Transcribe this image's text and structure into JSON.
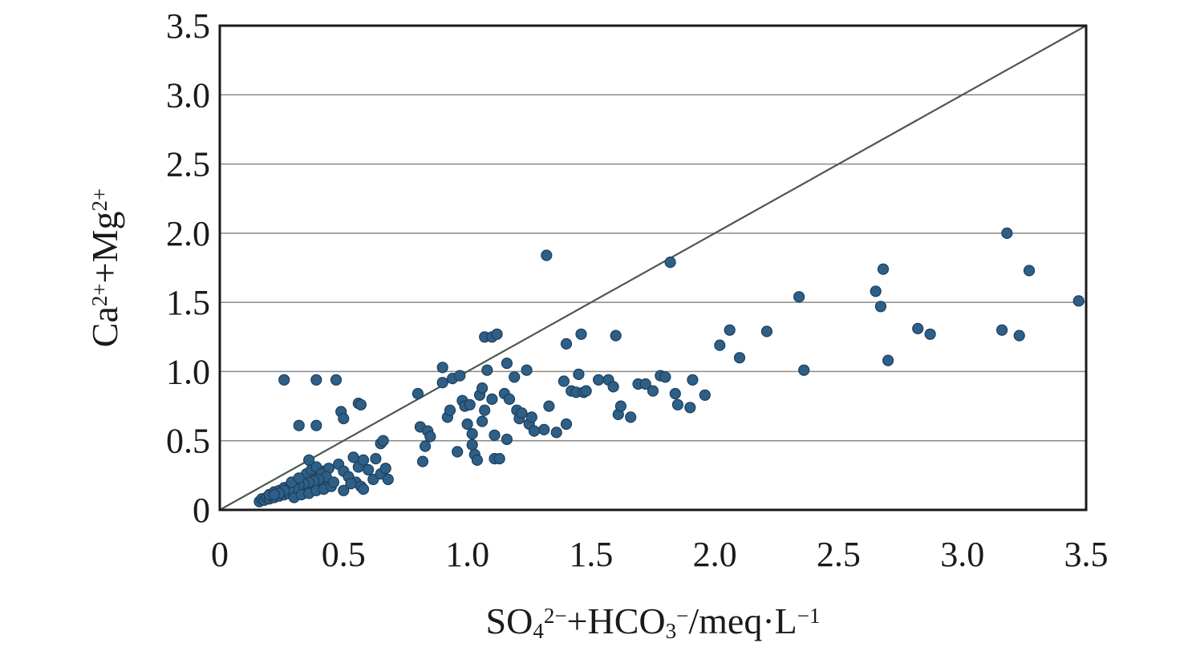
{
  "chart_data": {
    "type": "scatter",
    "title": "",
    "xlabel": {
      "parts": [
        {
          "text": "SO",
          "style": "normal"
        },
        {
          "text": "4",
          "style": "sub"
        },
        {
          "text": "2−",
          "style": "sup"
        },
        {
          "text": "+HCO",
          "style": "normal"
        },
        {
          "text": "3",
          "style": "sub"
        },
        {
          "text": "−",
          "style": "sup"
        },
        {
          "text": "/meq·L",
          "style": "normal"
        },
        {
          "text": "−1",
          "style": "sup"
        }
      ]
    },
    "ylabel": {
      "parts": [
        {
          "text": "Ca",
          "style": "normal"
        },
        {
          "text": "2+",
          "style": "sup"
        },
        {
          "text": "+Mg",
          "style": "normal"
        },
        {
          "text": "2+",
          "style": "sup"
        }
      ]
    },
    "xlim": [
      0,
      3.5
    ],
    "ylim": [
      0,
      3.5
    ],
    "x_ticks": [
      "0",
      "0.5",
      "1.0",
      "1.5",
      "2.0",
      "2.5",
      "3.0",
      "3.5"
    ],
    "y_ticks": [
      "0",
      "0.5",
      "1.0",
      "1.5",
      "2.0",
      "2.5",
      "3.0",
      "3.5"
    ],
    "grid": "horizontal",
    "reference_line": {
      "from": [
        0,
        0
      ],
      "to": [
        3.5,
        3.5
      ],
      "color": "#4a5a4a"
    },
    "marker_color": "#2e5f86",
    "points": [
      [
        0.16,
        0.06
      ],
      [
        0.17,
        0.08
      ],
      [
        0.18,
        0.07
      ],
      [
        0.19,
        0.09
      ],
      [
        0.2,
        0.08
      ],
      [
        0.21,
        0.1
      ],
      [
        0.22,
        0.09
      ],
      [
        0.23,
        0.11
      ],
      [
        0.24,
        0.1
      ],
      [
        0.25,
        0.12
      ],
      [
        0.26,
        0.11
      ],
      [
        0.27,
        0.13
      ],
      [
        0.28,
        0.12
      ],
      [
        0.29,
        0.14
      ],
      [
        0.3,
        0.13
      ],
      [
        0.31,
        0.15
      ],
      [
        0.32,
        0.14
      ],
      [
        0.33,
        0.16
      ],
      [
        0.34,
        0.15
      ],
      [
        0.35,
        0.17
      ],
      [
        0.36,
        0.16
      ],
      [
        0.37,
        0.18
      ],
      [
        0.38,
        0.17
      ],
      [
        0.39,
        0.19
      ],
      [
        0.4,
        0.18
      ],
      [
        0.41,
        0.2
      ],
      [
        0.42,
        0.19
      ],
      [
        0.43,
        0.21
      ],
      [
        0.44,
        0.2
      ],
      [
        0.2,
        0.11
      ],
      [
        0.22,
        0.13
      ],
      [
        0.24,
        0.14
      ],
      [
        0.26,
        0.16
      ],
      [
        0.28,
        0.17
      ],
      [
        0.3,
        0.19
      ],
      [
        0.32,
        0.2
      ],
      [
        0.34,
        0.22
      ],
      [
        0.36,
        0.24
      ],
      [
        0.38,
        0.25
      ],
      [
        0.4,
        0.27
      ],
      [
        0.42,
        0.28
      ],
      [
        0.44,
        0.3
      ],
      [
        0.3,
        0.09
      ],
      [
        0.33,
        0.11
      ],
      [
        0.36,
        0.12
      ],
      [
        0.39,
        0.14
      ],
      [
        0.42,
        0.15
      ],
      [
        0.45,
        0.17
      ],
      [
        0.35,
        0.26
      ],
      [
        0.37,
        0.29
      ],
      [
        0.39,
        0.31
      ],
      [
        0.41,
        0.26
      ],
      [
        0.43,
        0.24
      ],
      [
        0.4,
        0.22
      ],
      [
        0.38,
        0.21
      ],
      [
        0.36,
        0.2
      ],
      [
        0.34,
        0.19
      ],
      [
        0.32,
        0.18
      ],
      [
        0.3,
        0.16
      ],
      [
        0.28,
        0.15
      ],
      [
        0.26,
        0.14
      ],
      [
        0.24,
        0.12
      ],
      [
        0.22,
        0.11
      ],
      [
        0.36,
        0.36
      ],
      [
        0.29,
        0.2
      ],
      [
        0.32,
        0.23
      ],
      [
        0.26,
        0.94
      ],
      [
        0.32,
        0.61
      ],
      [
        0.39,
        0.94
      ],
      [
        0.39,
        0.61
      ],
      [
        0.47,
        0.94
      ],
      [
        0.49,
        0.71
      ],
      [
        0.5,
        0.66
      ],
      [
        0.56,
        0.77
      ],
      [
        0.57,
        0.76
      ],
      [
        0.48,
        0.33
      ],
      [
        0.5,
        0.28
      ],
      [
        0.52,
        0.24
      ],
      [
        0.54,
        0.38
      ],
      [
        0.55,
        0.2
      ],
      [
        0.56,
        0.31
      ],
      [
        0.57,
        0.17
      ],
      [
        0.58,
        0.36
      ],
      [
        0.6,
        0.29
      ],
      [
        0.62,
        0.22
      ],
      [
        0.63,
        0.37
      ],
      [
        0.65,
        0.26
      ],
      [
        0.65,
        0.48
      ],
      [
        0.66,
        0.5
      ],
      [
        0.67,
        0.3
      ],
      [
        0.68,
        0.22
      ],
      [
        0.46,
        0.2
      ],
      [
        0.5,
        0.14
      ],
      [
        0.58,
        0.15
      ],
      [
        0.53,
        0.19
      ],
      [
        0.8,
        0.84
      ],
      [
        0.81,
        0.6
      ],
      [
        0.82,
        0.35
      ],
      [
        0.83,
        0.46
      ],
      [
        0.84,
        0.57
      ],
      [
        0.85,
        0.53
      ],
      [
        0.9,
        0.92
      ],
      [
        0.9,
        1.03
      ],
      [
        0.92,
        0.67
      ],
      [
        0.93,
        0.72
      ],
      [
        0.94,
        0.95
      ],
      [
        0.96,
        0.42
      ],
      [
        0.97,
        0.97
      ],
      [
        0.98,
        0.79
      ],
      [
        0.99,
        0.75
      ],
      [
        1.0,
        0.62
      ],
      [
        1.01,
        0.76
      ],
      [
        1.02,
        0.55
      ],
      [
        1.02,
        0.47
      ],
      [
        1.03,
        0.4
      ],
      [
        1.04,
        0.36
      ],
      [
        1.05,
        0.83
      ],
      [
        1.06,
        0.88
      ],
      [
        1.06,
        0.64
      ],
      [
        1.07,
        1.25
      ],
      [
        1.07,
        0.72
      ],
      [
        1.08,
        1.01
      ],
      [
        1.1,
        0.8
      ],
      [
        1.1,
        1.25
      ],
      [
        1.11,
        0.54
      ],
      [
        1.11,
        0.37
      ],
      [
        1.12,
        1.27
      ],
      [
        1.13,
        0.37
      ],
      [
        1.15,
        0.84
      ],
      [
        1.16,
        1.06
      ],
      [
        1.16,
        0.51
      ],
      [
        1.17,
        0.8
      ],
      [
        1.19,
        0.96
      ],
      [
        1.2,
        0.72
      ],
      [
        1.21,
        0.66
      ],
      [
        1.22,
        0.7
      ],
      [
        1.24,
        1.01
      ],
      [
        1.25,
        0.62
      ],
      [
        1.26,
        0.67
      ],
      [
        1.27,
        0.57
      ],
      [
        1.31,
        0.58
      ],
      [
        1.32,
        1.84
      ],
      [
        1.33,
        0.75
      ],
      [
        1.36,
        0.56
      ],
      [
        1.39,
        0.93
      ],
      [
        1.4,
        1.2
      ],
      [
        1.4,
        0.62
      ],
      [
        1.42,
        0.86
      ],
      [
        1.44,
        0.85
      ],
      [
        1.45,
        0.98
      ],
      [
        1.46,
        1.27
      ],
      [
        1.47,
        0.85
      ],
      [
        1.48,
        0.86
      ],
      [
        1.53,
        0.94
      ],
      [
        1.57,
        0.94
      ],
      [
        1.59,
        0.89
      ],
      [
        1.6,
        1.26
      ],
      [
        1.61,
        0.69
      ],
      [
        1.62,
        0.75
      ],
      [
        1.66,
        0.67
      ],
      [
        1.69,
        0.91
      ],
      [
        1.72,
        0.91
      ],
      [
        1.75,
        0.86
      ],
      [
        1.78,
        0.97
      ],
      [
        1.8,
        0.96
      ],
      [
        1.82,
        1.79
      ],
      [
        1.84,
        0.84
      ],
      [
        1.85,
        0.76
      ],
      [
        1.9,
        0.74
      ],
      [
        1.91,
        0.94
      ],
      [
        1.96,
        0.83
      ],
      [
        2.02,
        1.19
      ],
      [
        2.06,
        1.3
      ],
      [
        2.1,
        1.1
      ],
      [
        2.21,
        1.29
      ],
      [
        2.34,
        1.54
      ],
      [
        2.36,
        1.01
      ],
      [
        2.65,
        1.58
      ],
      [
        2.67,
        1.47
      ],
      [
        2.68,
        1.74
      ],
      [
        2.7,
        1.08
      ],
      [
        2.82,
        1.31
      ],
      [
        2.87,
        1.27
      ],
      [
        3.16,
        1.3
      ],
      [
        3.18,
        2.0
      ],
      [
        3.23,
        1.26
      ],
      [
        3.27,
        1.73
      ],
      [
        3.47,
        1.51
      ]
    ]
  }
}
